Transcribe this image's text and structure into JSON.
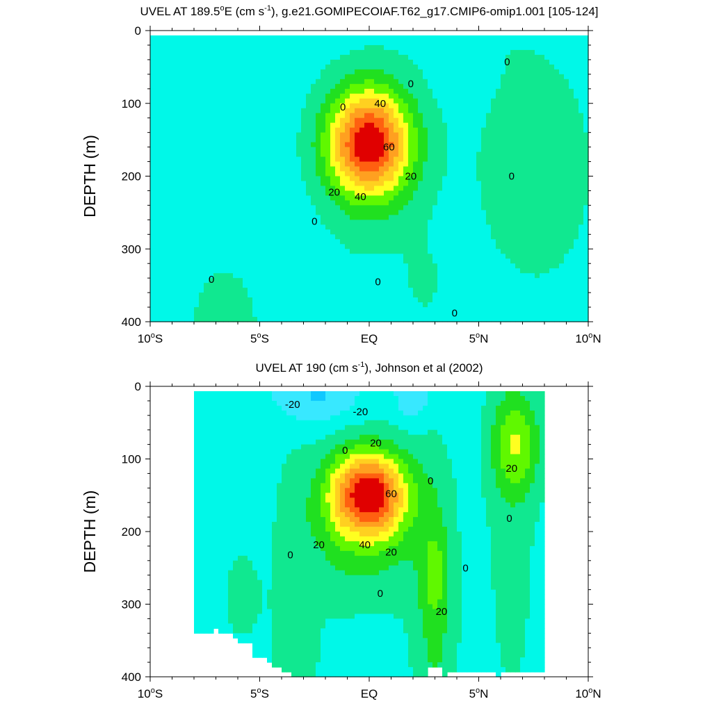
{
  "chart_data": [
    {
      "type": "contour",
      "title_main": "UVEL AT 189.5",
      "title_degree": "o",
      "title_tail": "E (cm s",
      "title_sup": "-1",
      "title_rest": "), g.e21.GOMIPECOIAF.T62_g17.CMIP6-omip1.001 [105-124]",
      "ylabel": "DEPTH (m)",
      "xlim": [
        -10,
        10
      ],
      "ylim": [
        0,
        400
      ],
      "x_ticks": [
        {
          "value": -10,
          "text": "10",
          "sup": "o",
          "suffix": "S"
        },
        {
          "value": -5,
          "text": "5",
          "sup": "o",
          "suffix": "S"
        },
        {
          "value": 0,
          "text": "EQ",
          "sup": "",
          "suffix": ""
        },
        {
          "value": 5,
          "text": "5",
          "sup": "o",
          "suffix": "N"
        },
        {
          "value": 10,
          "text": "10",
          "sup": "o",
          "suffix": "N"
        }
      ],
      "y_ticks": [
        {
          "value": 0,
          "text": "0"
        },
        {
          "value": 100,
          "text": "100"
        },
        {
          "value": 200,
          "text": "200"
        },
        {
          "value": 300,
          "text": "300"
        },
        {
          "value": 400,
          "text": "400"
        }
      ],
      "contour_interval": 10,
      "core": {
        "lat": 0.0,
        "depth": 155,
        "max_speed": 67
      },
      "contour_labels": [
        {
          "lat": 0.5,
          "depth": 100,
          "text": "40"
        },
        {
          "lat": 0.9,
          "depth": 160,
          "text": "60"
        },
        {
          "lat": -1.6,
          "depth": 222,
          "text": "20"
        },
        {
          "lat": -0.4,
          "depth": 228,
          "text": "40"
        },
        {
          "lat": 1.9,
          "depth": 200,
          "text": "20"
        },
        {
          "lat": -1.2,
          "depth": 105,
          "text": "0"
        },
        {
          "lat": 1.9,
          "depth": 73,
          "text": "0"
        },
        {
          "lat": 6.3,
          "depth": 43,
          "text": "0"
        },
        {
          "lat": 6.5,
          "depth": 200,
          "text": "0"
        },
        {
          "lat": -2.5,
          "depth": 262,
          "text": "0"
        },
        {
          "lat": -7.2,
          "depth": 342,
          "text": "0"
        },
        {
          "lat": 0.4,
          "depth": 345,
          "text": "0"
        },
        {
          "lat": 3.9,
          "depth": 388,
          "text": "0"
        }
      ]
    },
    {
      "type": "contour",
      "title_main": "UVEL AT 190 (cm s",
      "title_sup": "-1",
      "title_rest": "), Johnson et al (2002)",
      "ylabel": "DEPTH (m)",
      "xlim": [
        -10,
        10
      ],
      "ylim": [
        0,
        400
      ],
      "x_ticks": [
        {
          "value": -10,
          "text": "10",
          "sup": "o",
          "suffix": "S"
        },
        {
          "value": -5,
          "text": "5",
          "sup": "o",
          "suffix": "S"
        },
        {
          "value": 0,
          "text": "EQ",
          "sup": "",
          "suffix": ""
        },
        {
          "value": 5,
          "text": "5",
          "sup": "o",
          "suffix": "N"
        },
        {
          "value": 10,
          "text": "10",
          "sup": "o",
          "suffix": "N"
        }
      ],
      "y_ticks": [
        {
          "value": 0,
          "text": "0"
        },
        {
          "value": 100,
          "text": "100"
        },
        {
          "value": 200,
          "text": "200"
        },
        {
          "value": 300,
          "text": "300"
        },
        {
          "value": 400,
          "text": "400"
        }
      ],
      "contour_interval": 10,
      "data_extent_lat": [
        -8,
        8
      ],
      "core": {
        "lat": 0.0,
        "depth": 148,
        "max_speed": 75
      },
      "contour_labels": [
        {
          "lat": -3.5,
          "depth": 25,
          "text": "-20"
        },
        {
          "lat": -0.4,
          "depth": 35,
          "text": "-20"
        },
        {
          "lat": 0.3,
          "depth": 78,
          "text": "20"
        },
        {
          "lat": -1.1,
          "depth": 88,
          "text": "0"
        },
        {
          "lat": 1.0,
          "depth": 148,
          "text": "60"
        },
        {
          "lat": 2.8,
          "depth": 130,
          "text": "0"
        },
        {
          "lat": 6.5,
          "depth": 113,
          "text": "20"
        },
        {
          "lat": 6.4,
          "depth": 182,
          "text": "0"
        },
        {
          "lat": -2.3,
          "depth": 218,
          "text": "20"
        },
        {
          "lat": -0.2,
          "depth": 218,
          "text": "40"
        },
        {
          "lat": 1.0,
          "depth": 228,
          "text": "20"
        },
        {
          "lat": -3.6,
          "depth": 232,
          "text": "0"
        },
        {
          "lat": 4.4,
          "depth": 250,
          "text": "0"
        },
        {
          "lat": 0.5,
          "depth": 285,
          "text": "0"
        },
        {
          "lat": 3.3,
          "depth": 310,
          "text": "20"
        }
      ]
    }
  ]
}
